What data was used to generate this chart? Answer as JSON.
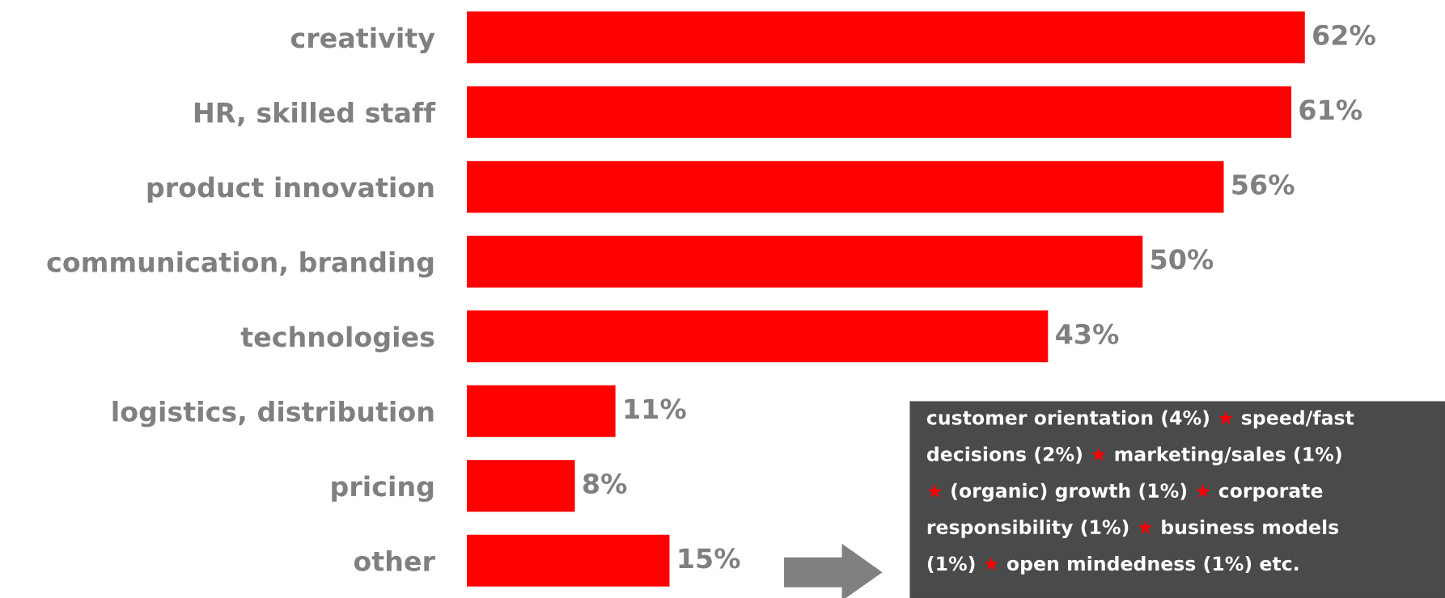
{
  "chart_data": {
    "type": "bar",
    "orientation": "horizontal",
    "categories": [
      "creativity",
      "HR, skilled staff",
      "product innovation",
      "communication, branding",
      "technologies",
      "logistics, distribution",
      "pricing",
      "other"
    ],
    "values": [
      62,
      61,
      56,
      50,
      43,
      11,
      8,
      15
    ],
    "color": "#ff0000",
    "value_labels": [
      "62%",
      "61%",
      "56%",
      "50%",
      "43%",
      "11%",
      "8%",
      "15%"
    ],
    "grid": false,
    "legend": false,
    "tick_labels": "y",
    "annotations": [
      "customer orientation (4%) ★ speed/fast\ndecisions (2%) ★ marketing/sales (1%)\n★ (organic) growth (1%) ★ corporate\nresponsibility (1%) ★ business models\n(1%) ★ open mindedness (1%) etc."
    ]
  }
}
